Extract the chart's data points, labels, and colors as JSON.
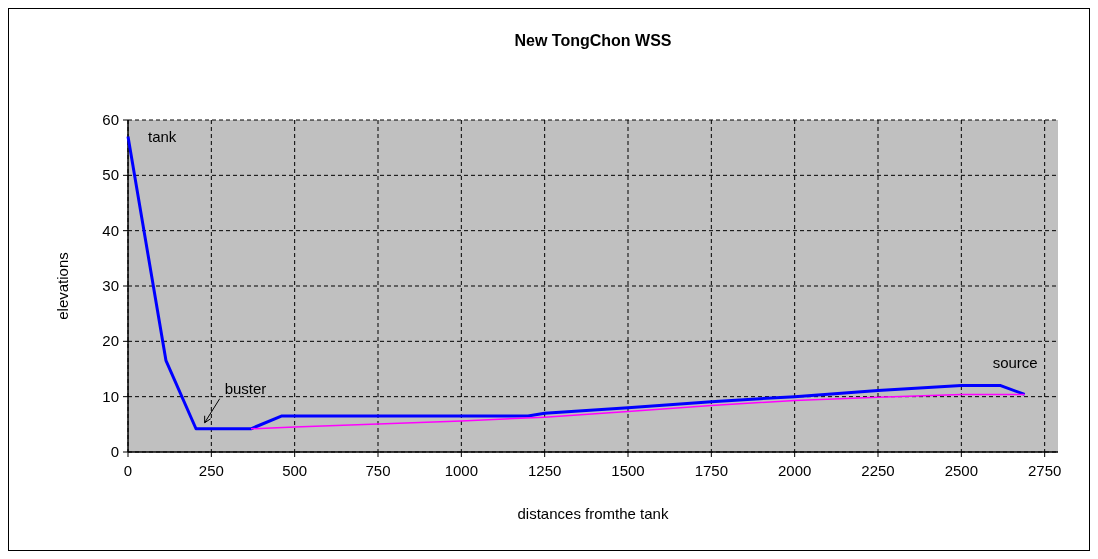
{
  "chart_data": {
    "type": "line",
    "title": "New TongChon WSS",
    "xlabel": "distances fromthe tank",
    "ylabel": "elevations",
    "xlim": [
      0,
      2790
    ],
    "xticks": [
      0,
      250,
      500,
      750,
      1000,
      1250,
      1500,
      1750,
      2000,
      2250,
      2500,
      2750
    ],
    "ylim": [
      0,
      60
    ],
    "yticks": [
      0,
      10,
      20,
      30,
      40,
      50,
      60
    ],
    "grid": true,
    "series": [
      {
        "color": "#0000ff",
        "x": [
          0,
          114,
          204,
          369,
          460,
          1000,
          1200,
          1250,
          1500,
          1750,
          2000,
          2250,
          2500,
          2618,
          2690
        ],
        "values": [
          57,
          16.5,
          4.2,
          4.2,
          6.5,
          6.5,
          6.5,
          7,
          8,
          9.1,
          10,
          11.1,
          12,
          12,
          10.4
        ]
      },
      {
        "color": "#ff00ff",
        "x": [
          369,
          500,
          1000,
          1250,
          1500,
          1750,
          2000,
          2250,
          2500,
          2690
        ],
        "values": [
          4.2,
          4.5,
          5.6,
          6.3,
          7.3,
          8.4,
          9.3,
          9.9,
          10.4,
          10.4
        ]
      }
    ],
    "annotations": [
      {
        "text": "tank",
        "x": 0,
        "y": 57
      },
      {
        "text": "buster",
        "x": 230,
        "y": 4.2
      },
      {
        "text": "source",
        "x": 2600,
        "y": 12
      }
    ]
  }
}
